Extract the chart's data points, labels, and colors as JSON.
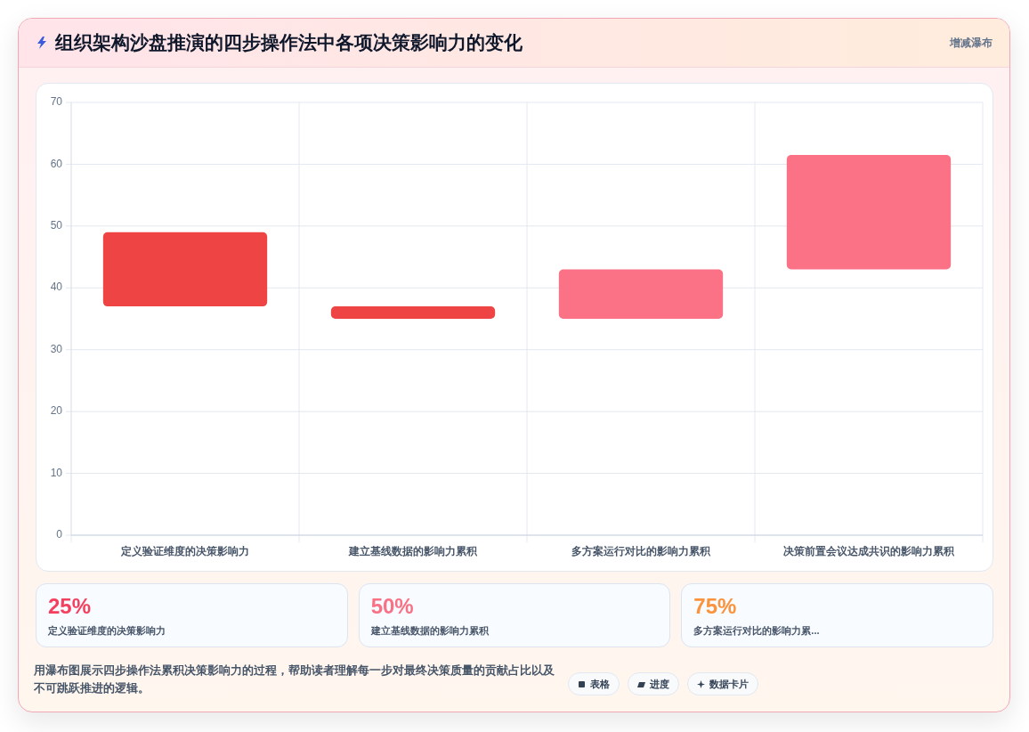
{
  "chart_data": [
    {
      "type": "bar",
      "title": "组织架构沙盘推演的四步操作法中各项决策影响力的变化",
      "categories": [
        "定义验证维度的决策影响力",
        "建立基线数据的影响力累积",
        "多方案运行对比的影响力累积",
        "决策前置会议达成共识的影响力累积"
      ],
      "values": [
        -12,
        -2,
        8,
        18.5
      ],
      "base": [
        49,
        37,
        35,
        43
      ],
      "colors": [
        "#ef4444",
        "#ef4444",
        "#fb7185",
        "#fb7185"
      ],
      "ylim": [
        0,
        70
      ],
      "yticks": [
        0,
        10,
        20,
        30,
        40,
        50,
        60,
        70
      ],
      "grid": true,
      "annotations": [
        "增减瀑布",
        "用瀑布图展示四步操作法累积决策影响力的过程，帮助读者理解每一步对最终决策质量的贡献占比以及不可跳跃推进的逻辑。",
        "表格",
        "进度",
        "数据卡片"
      ]
    },
    {
      "type": "other",
      "categories": [
        "定义验证维度的决策影响力",
        "建立基线数据的影响力累积",
        "多方案运行对比的影响力累..."
      ],
      "value_labels": [
        "25%",
        "50%",
        "75%"
      ]
    }
  ]
}
